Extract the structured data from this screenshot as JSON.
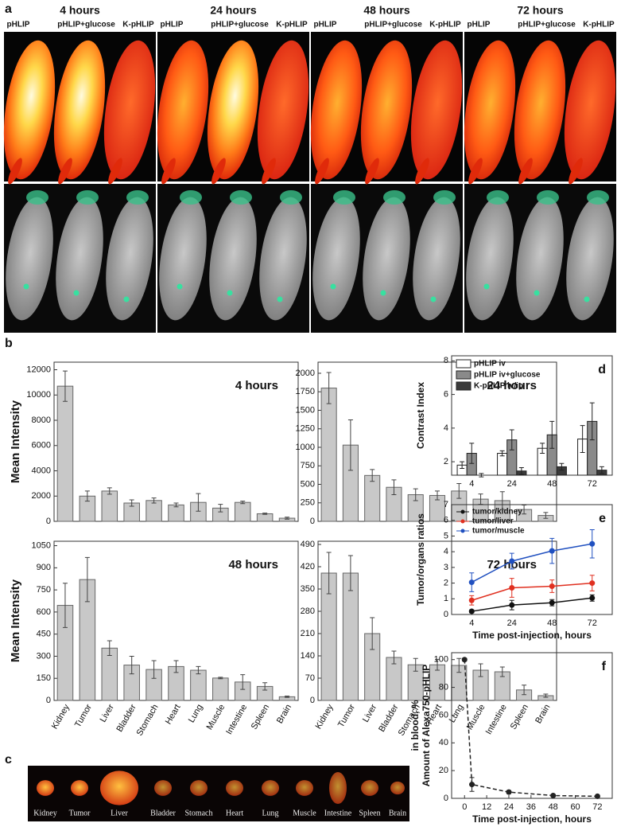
{
  "panel_a": {
    "label": "a",
    "columns": [
      {
        "time": "4 hours",
        "groups": [
          "pHLIP",
          "pHLIP+glucose",
          "K-pHLIP"
        ]
      },
      {
        "time": "24 hours",
        "groups": [
          "pHLIP",
          "pHLIP+glucose",
          "K-pHLIP"
        ]
      },
      {
        "time": "48 hours",
        "groups": [
          "pHLIP",
          "pHLIP+glucose",
          "K-pHLIP"
        ]
      },
      {
        "time": "72 hours",
        "groups": [
          "pHLIP",
          "pHLIP+glucose",
          "K-pHLIP"
        ]
      }
    ]
  },
  "panel_b": {
    "label": "b"
  },
  "panel_c": {
    "label": "c",
    "organs": [
      "Kidney",
      "Tumor",
      "Liver",
      "Bladder",
      "Stomach",
      "Heart",
      "Lung",
      "Muscle",
      "Intestine",
      "Spleen",
      "Brain"
    ]
  },
  "chart_data": [
    {
      "type": "bar",
      "title": "4 hours",
      "y_label": "Mean Intensity",
      "color": "#c8c8c8",
      "values": [
        10700,
        2000,
        2400,
        1450,
        1650,
        1300,
        1500,
        1050,
        1500,
        600,
        250
      ],
      "errors": [
        1200,
        400,
        250,
        250,
        200,
        150,
        700,
        300,
        100,
        50,
        80
      ],
      "ylim": [
        0,
        12600
      ],
      "yticks": [
        0,
        2000,
        4000,
        6000,
        8000,
        10000,
        12000
      ]
    },
    {
      "type": "bar",
      "title": "24 hours",
      "color": "#c8c8c8",
      "values": [
        1800,
        1030,
        620,
        460,
        360,
        350,
        410,
        300,
        280,
        160,
        80
      ],
      "errors": [
        210,
        340,
        80,
        100,
        80,
        60,
        100,
        70,
        120,
        60,
        40
      ],
      "ylim": [
        0,
        2150
      ],
      "yticks": [
        0,
        250,
        500,
        750,
        1000,
        1250,
        1500,
        1750,
        2000
      ]
    },
    {
      "type": "bar",
      "title": "48 hours",
      "y_label": "Mean Intensity",
      "color": "#c8c8c8",
      "categories": [
        "Kidney",
        "Tumor",
        "Liver",
        "Bladder",
        "Stomach",
        "Heart",
        "Lung",
        "Muscle",
        "Intestine",
        "Spleen",
        "Brain"
      ],
      "values": [
        645,
        820,
        355,
        240,
        210,
        230,
        205,
        152,
        125,
        95,
        25
      ],
      "errors": [
        150,
        150,
        50,
        60,
        60,
        40,
        25,
        5,
        50,
        25,
        5
      ],
      "ylim": [
        0,
        1080
      ],
      "yticks": [
        0,
        150,
        300,
        450,
        600,
        750,
        900,
        1050
      ]
    },
    {
      "type": "bar",
      "title": "72 hours",
      "color": "#c8c8c8",
      "categories": [
        "Kidney",
        "Tumor",
        "Liver",
        "Bladder",
        "Stomach",
        "Heart",
        "Lung",
        "Muscle",
        "Intestine",
        "Spleen",
        "Brain"
      ],
      "values": [
        400,
        400,
        210,
        135,
        112,
        112,
        110,
        95,
        90,
        33,
        15
      ],
      "errors": [
        65,
        55,
        50,
        20,
        20,
        17,
        22,
        20,
        15,
        15,
        5
      ],
      "ylim": [
        0,
        500
      ],
      "yticks": [
        0,
        70,
        140,
        210,
        280,
        350,
        420,
        490
      ]
    },
    {
      "type": "bar",
      "panel_label": "d",
      "y_label": "Contrast Index",
      "categories": [
        "4",
        "24",
        "48",
        "72"
      ],
      "series": [
        {
          "name": "pHLIP iv",
          "color": "#ffffff",
          "values": [
            1.8,
            2.5,
            2.8,
            3.35
          ],
          "errors": [
            0.2,
            0.15,
            0.3,
            0.8
          ]
        },
        {
          "name": "pHLIP iv+glucose",
          "color": "#8a8a8a",
          "values": [
            2.5,
            3.3,
            3.6,
            4.4
          ],
          "errors": [
            0.6,
            0.6,
            0.8,
            1.1
          ]
        },
        {
          "name": "K-pHLIP iv/ip",
          "color": "#3a3a3a",
          "values": [
            1.2,
            1.45,
            1.7,
            1.5
          ],
          "errors": [
            0.1,
            0.2,
            0.2,
            0.2
          ]
        }
      ],
      "ylim": [
        1.2,
        8.3
      ],
      "yticks": [
        2,
        4,
        6,
        8
      ]
    },
    {
      "type": "line",
      "panel_label": "e",
      "y_label": "Tumor/organs ratios",
      "x_label": "Time post-injection, hours",
      "categories": [
        "4",
        "24",
        "48",
        "72"
      ],
      "series": [
        {
          "name": "tumor/kidney",
          "color": "#111111",
          "values": [
            0.2,
            0.6,
            0.75,
            1.05
          ],
          "errors": [
            0.1,
            0.3,
            0.2,
            0.2
          ]
        },
        {
          "name": "tumor/liver",
          "color": "#e03020",
          "values": [
            0.9,
            1.7,
            1.8,
            2.0
          ],
          "errors": [
            0.3,
            0.6,
            0.4,
            0.5
          ]
        },
        {
          "name": "tumor/muscle",
          "color": "#2050c0",
          "values": [
            2.05,
            3.4,
            4.05,
            4.5
          ],
          "errors": [
            0.6,
            0.5,
            0.8,
            0.9
          ]
        }
      ],
      "ylim": [
        0,
        7
      ],
      "yticks": [
        0,
        1,
        2,
        3,
        4,
        5,
        6,
        7
      ]
    },
    {
      "type": "line",
      "panel_label": "f",
      "y_label": [
        "Amount of Alexa750-pHLIP",
        "in blood, %"
      ],
      "x_label": "Time post-injection, hours",
      "color": "#222222",
      "x": [
        0,
        4,
        24,
        48,
        72
      ],
      "values": [
        100,
        10,
        4.5,
        2,
        1.5
      ],
      "errors": [
        1,
        5,
        1,
        0.5,
        0.5
      ],
      "xlim": [
        -7,
        80
      ],
      "xticks": [
        0,
        12,
        24,
        36,
        48,
        60,
        72
      ],
      "ylim": [
        0,
        105
      ],
      "yticks": [
        0,
        20,
        40,
        60,
        80,
        100
      ]
    }
  ]
}
